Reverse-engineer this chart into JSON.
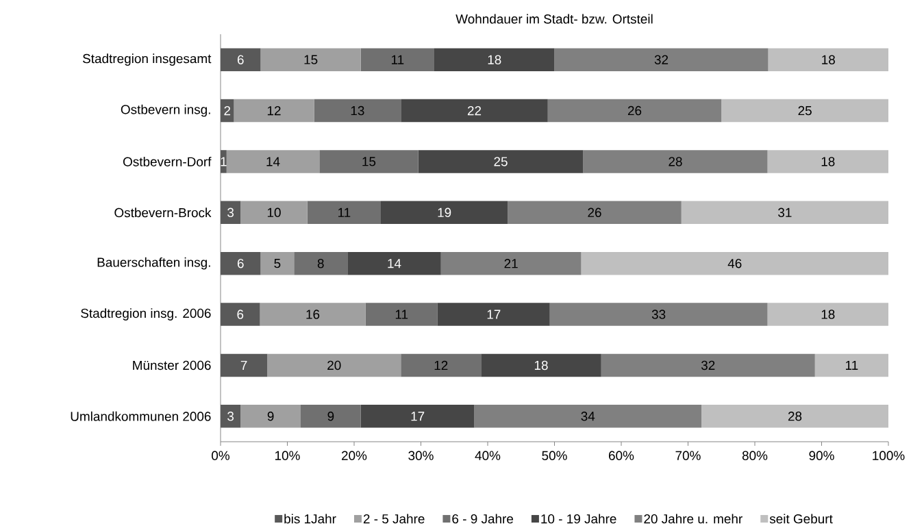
{
  "chart_data": {
    "type": "bar",
    "orientation": "horizontal",
    "stacked": true,
    "title": "Wohndauer im Stadt- bzw. Ortsteil",
    "categories": [
      "Stadtregion insgesamt",
      "Ostbevern insg.",
      "Ostbevern-Dorf",
      "Ostbevern-Brock",
      "Bauerschaften insg.",
      "Stadtregion insg. 2006",
      "Münster 2006",
      "Umlandkommunen 2006"
    ],
    "series": [
      {
        "name": "bis 1Jahr",
        "color": "#595959",
        "values": [
          6,
          2,
          0.9,
          3,
          6,
          5.9,
          7,
          3
        ],
        "value_labels": [
          "6",
          "2",
          "1",
          "3",
          "6",
          "6",
          "7",
          "3"
        ]
      },
      {
        "name": "2 - 5 Jahre",
        "color": "#a0a0a0",
        "values": [
          15,
          12,
          13.9,
          10,
          5,
          15.8,
          20,
          9
        ],
        "value_labels": [
          "15",
          "12",
          "14",
          "10",
          "5",
          "16",
          "20",
          "9"
        ]
      },
      {
        "name": "6 - 9 Jahre",
        "color": "#707070",
        "values": [
          11,
          13,
          14.8,
          11,
          8,
          10.8,
          12,
          9
        ],
        "value_labels": [
          "11",
          "13",
          "15",
          "11",
          "8",
          "11",
          "12",
          "9"
        ]
      },
      {
        "name": "10 - 19 Jahre",
        "color": "#464646",
        "values": [
          18,
          22,
          24.7,
          19,
          14,
          16.8,
          18,
          17
        ],
        "value_labels": [
          "18",
          "22",
          "25",
          "19",
          "14",
          "17",
          "18",
          "17"
        ]
      },
      {
        "name": "20 Jahre u. mehr",
        "color": "#808080",
        "values": [
          32,
          26,
          27.6,
          26,
          21,
          32.6,
          32,
          34
        ],
        "value_labels": [
          "32",
          "26",
          "28",
          "26",
          "21",
          "33",
          "32",
          "34"
        ]
      },
      {
        "name": "seit Geburt",
        "color": "#bfbfbf",
        "values": [
          18,
          25,
          18.1,
          31,
          46,
          18.1,
          11,
          28
        ],
        "value_labels": [
          "18",
          "25",
          "18",
          "31",
          "46",
          "18",
          "11",
          "28"
        ]
      }
    ],
    "xlim": [
      0,
      100
    ],
    "xticks": [
      {
        "value": 0,
        "label": "0%"
      },
      {
        "value": 10,
        "label": "10%"
      },
      {
        "value": 20,
        "label": "20%"
      },
      {
        "value": 30,
        "label": "30%"
      },
      {
        "value": 40,
        "label": "40%"
      },
      {
        "value": 50,
        "label": "50%"
      },
      {
        "value": 60,
        "label": "60%"
      },
      {
        "value": 70,
        "label": "70%"
      },
      {
        "value": 80,
        "label": "80%"
      },
      {
        "value": 90,
        "label": "90%"
      },
      {
        "value": 100,
        "label": "100%"
      }
    ],
    "legend": "bottom"
  }
}
